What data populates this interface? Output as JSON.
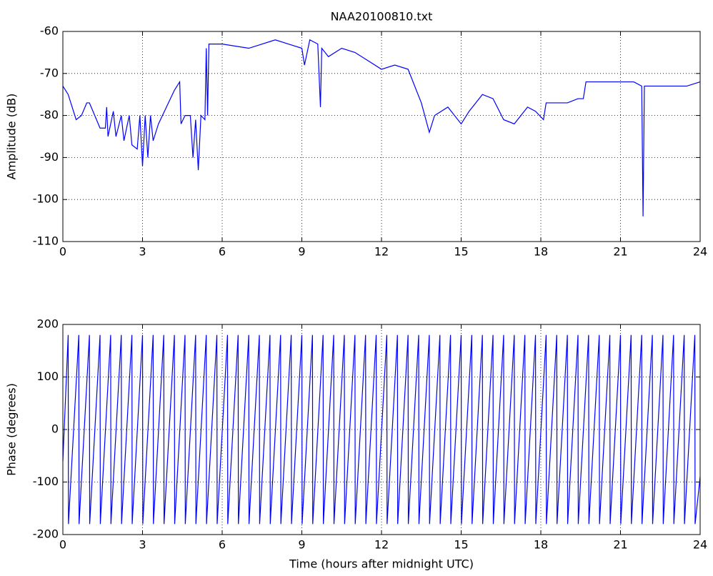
{
  "chart_data": [
    {
      "type": "line",
      "title": "NAA20100810.txt",
      "ylabel": "Amplitude (dB)",
      "xlim": [
        0,
        24
      ],
      "xticks": [
        0,
        3,
        6,
        9,
        12,
        15,
        18,
        21,
        24
      ],
      "ylim": [
        -110,
        -60
      ],
      "yticks": [
        -110,
        -100,
        -90,
        -80,
        -70,
        -60
      ],
      "grid": true,
      "series": [
        {
          "color": "#0000ff",
          "x": [
            0,
            0.2,
            0.5,
            0.7,
            0.9,
            1.0,
            1.2,
            1.4,
            1.6,
            1.65,
            1.7,
            1.9,
            2.0,
            2.2,
            2.3,
            2.5,
            2.6,
            2.8,
            2.9,
            3.0,
            3.1,
            3.2,
            3.3,
            3.4,
            3.6,
            3.9,
            4.2,
            4.4,
            4.45,
            4.6,
            4.8,
            4.9,
            5.0,
            5.1,
            5.2,
            5.35,
            5.4,
            5.45,
            5.5,
            6.0,
            7.0,
            7.5,
            8.0,
            8.5,
            9.0,
            9.1,
            9.3,
            9.6,
            9.7,
            9.75,
            10.0,
            10.5,
            11.0,
            11.5,
            12.0,
            12.5,
            13.0,
            13.5,
            13.8,
            14.0,
            14.5,
            15.0,
            15.3,
            15.8,
            16.2,
            16.6,
            17.0,
            17.5,
            17.8,
            18.1,
            18.2,
            19.0,
            19.4,
            19.6,
            19.7,
            20.5,
            21.0,
            21.5,
            21.8,
            21.85,
            21.9,
            22.3,
            22.8,
            23.5,
            24
          ],
          "values": [
            -73,
            -75,
            -81,
            -80,
            -77,
            -77,
            -80,
            -83,
            -83,
            -78,
            -85,
            -79,
            -85,
            -80,
            -86,
            -80,
            -87,
            -88,
            -80,
            -92,
            -80,
            -90,
            -80,
            -86,
            -82,
            -78,
            -74,
            -72,
            -82,
            -80,
            -80,
            -90,
            -81,
            -93,
            -80,
            -81,
            -64,
            -80,
            -63,
            -63,
            -64,
            -63,
            -62,
            -63,
            -64,
            -68,
            -62,
            -63,
            -78,
            -64,
            -66,
            -64,
            -65,
            -67,
            -69,
            -68,
            -69,
            -77,
            -84,
            -80,
            -78,
            -82,
            -79,
            -75,
            -76,
            -81,
            -82,
            -78,
            -79,
            -81,
            -77,
            -77,
            -76,
            -76,
            -72,
            -72,
            -72,
            -72,
            -73,
            -104,
            -73,
            -73,
            -73,
            -73,
            -72
          ]
        }
      ]
    },
    {
      "type": "line",
      "ylabel": "Phase (degrees)",
      "xlabel": "Time (hours after midnight UTC)",
      "xlim": [
        0,
        24
      ],
      "xticks": [
        0,
        3,
        6,
        9,
        12,
        15,
        18,
        21,
        24
      ],
      "ylim": [
        -200,
        200
      ],
      "yticks": [
        -200,
        -100,
        0,
        100,
        200
      ],
      "grid": true,
      "series": [
        {
          "color": "#0000ff",
          "x": [
            0,
            0.2,
            0.21,
            0.6,
            0.61,
            1.0,
            1.01,
            1.4,
            1.41,
            1.8,
            1.81,
            2.2,
            2.21,
            2.6,
            2.61,
            3.0,
            3.01,
            3.4,
            3.41,
            3.8,
            3.81,
            4.2,
            4.21,
            4.6,
            4.61,
            5.0,
            5.01,
            5.4,
            5.41,
            5.8,
            5.81,
            6.2,
            6.21,
            6.6,
            6.61,
            7.0,
            7.01,
            7.4,
            7.41,
            7.8,
            7.81,
            8.2,
            8.21,
            8.6,
            8.61,
            9.0,
            9.01,
            9.4,
            9.41,
            9.8,
            9.81,
            10.2,
            10.21,
            10.6,
            10.61,
            11.0,
            11.01,
            11.4,
            11.41,
            11.8,
            11.81,
            12.2,
            12.21,
            12.6,
            12.61,
            13.0,
            13.01,
            13.4,
            13.41,
            13.8,
            13.81,
            14.2,
            14.21,
            14.6,
            14.61,
            15.0,
            15.01,
            15.4,
            15.41,
            15.8,
            15.81,
            16.2,
            16.21,
            16.6,
            16.61,
            17.0,
            17.01,
            17.4,
            17.41,
            17.8,
            17.81,
            18.2,
            18.21,
            18.6,
            18.61,
            19.0,
            19.01,
            19.4,
            19.41,
            19.8,
            19.81,
            20.2,
            20.21,
            20.6,
            20.61,
            21.0,
            21.01,
            21.4,
            21.41,
            21.8,
            21.81,
            22.2,
            22.21,
            22.6,
            22.61,
            23.0,
            23.01,
            23.4,
            23.41,
            23.8,
            23.81,
            24
          ],
          "values": [
            -60,
            180,
            -180,
            180,
            -180,
            180,
            -180,
            180,
            -180,
            180,
            -180,
            180,
            -180,
            180,
            -180,
            180,
            -180,
            180,
            -180,
            180,
            -180,
            180,
            -180,
            180,
            -180,
            180,
            -180,
            180,
            -180,
            180,
            -180,
            180,
            -180,
            180,
            -180,
            180,
            -180,
            180,
            -180,
            180,
            -180,
            180,
            -180,
            180,
            -180,
            180,
            -180,
            180,
            -180,
            180,
            -180,
            180,
            -180,
            180,
            -180,
            180,
            -180,
            180,
            -180,
            180,
            -180,
            180,
            -180,
            180,
            -180,
            180,
            -180,
            180,
            -180,
            180,
            -180,
            180,
            -180,
            180,
            -180,
            180,
            -180,
            180,
            -180,
            180,
            -180,
            180,
            -180,
            180,
            -180,
            180,
            -180,
            180,
            -180,
            180,
            -180,
            180,
            -180,
            180,
            -180,
            180,
            -180,
            180,
            -180,
            180,
            -180,
            180,
            -180,
            180,
            -180,
            180,
            -180,
            180,
            -180,
            180,
            -180,
            180,
            -180,
            180,
            -180,
            180,
            -180,
            180,
            -180,
            180,
            -180,
            -90
          ]
        }
      ]
    }
  ]
}
